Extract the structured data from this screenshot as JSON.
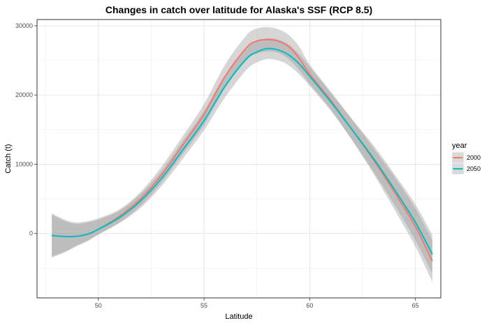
{
  "chart_data": {
    "type": "line",
    "title": "Changes in catch over latitude for Alaska's SSF (RCP 8.5)",
    "xlabel": "Latitude",
    "ylabel": "Catch (t)",
    "xlim": [
      47.1,
      66.2
    ],
    "ylim": [
      -9300,
      30900
    ],
    "x_ticks": [
      50,
      55,
      60,
      65
    ],
    "y_ticks": [
      0,
      10000,
      20000,
      30000
    ],
    "y_tick_labels": [
      "0",
      "10000",
      "20000",
      "30000"
    ],
    "grid": true,
    "legend": {
      "title": "year",
      "position": "right"
    },
    "series": [
      {
        "name": "2000",
        "color": "#F8766D",
        "x": [
          47.8,
          48.5,
          49.0,
          49.5,
          50.0,
          51.0,
          52.0,
          53.0,
          54.0,
          55.0,
          56.0,
          57.0,
          57.5,
          58.0,
          58.5,
          59.0,
          59.5,
          60.0,
          61.0,
          62.0,
          63.0,
          64.0,
          65.0,
          65.8
        ],
        "y": [
          -300,
          -450,
          -400,
          -100,
          600,
          2500,
          5000,
          8500,
          12800,
          17200,
          22700,
          26800,
          27800,
          28000,
          27800,
          27000,
          25300,
          23000,
          19200,
          15000,
          10700,
          6000,
          1000,
          -4000
        ],
        "lower": [
          -3500,
          -2600,
          -1800,
          -1100,
          -200,
          1600,
          4000,
          7400,
          11500,
          15700,
          21000,
          25000,
          26000,
          26300,
          26100,
          25200,
          23600,
          21600,
          17900,
          13500,
          8700,
          3500,
          -1900,
          -7000
        ],
        "upper": [
          2900,
          1900,
          1600,
          1800,
          2200,
          3500,
          6000,
          9700,
          14100,
          18700,
          24400,
          28600,
          29600,
          29800,
          29500,
          28700,
          27000,
          24400,
          20500,
          16500,
          12400,
          8200,
          3600,
          -1000
        ]
      },
      {
        "name": "2050",
        "color": "#00BFC4",
        "x": [
          47.8,
          48.5,
          49.0,
          49.5,
          50.0,
          51.0,
          52.0,
          53.0,
          54.0,
          55.0,
          56.0,
          57.0,
          57.5,
          58.0,
          58.5,
          59.0,
          59.5,
          60.0,
          61.0,
          62.0,
          63.0,
          64.0,
          65.0,
          65.8
        ],
        "y": [
          -300,
          -450,
          -400,
          -100,
          600,
          2300,
          4700,
          8000,
          12100,
          16300,
          21300,
          25200,
          26200,
          26700,
          26500,
          25800,
          24500,
          22700,
          19000,
          15000,
          10900,
          6400,
          1600,
          -3000
        ],
        "lower": [
          -3300,
          -2500,
          -1700,
          -1000,
          -100,
          1500,
          3700,
          6900,
          10800,
          14900,
          19700,
          23600,
          24700,
          25200,
          25000,
          24300,
          23000,
          21300,
          17700,
          13500,
          9000,
          4200,
          -1000,
          -5800
        ],
        "upper": [
          2700,
          1700,
          1400,
          1600,
          2000,
          3300,
          5700,
          9100,
          13400,
          17700,
          22900,
          26800,
          27700,
          28200,
          28000,
          27300,
          25900,
          24100,
          20300,
          16500,
          12800,
          8600,
          4200,
          -200
        ]
      }
    ]
  }
}
